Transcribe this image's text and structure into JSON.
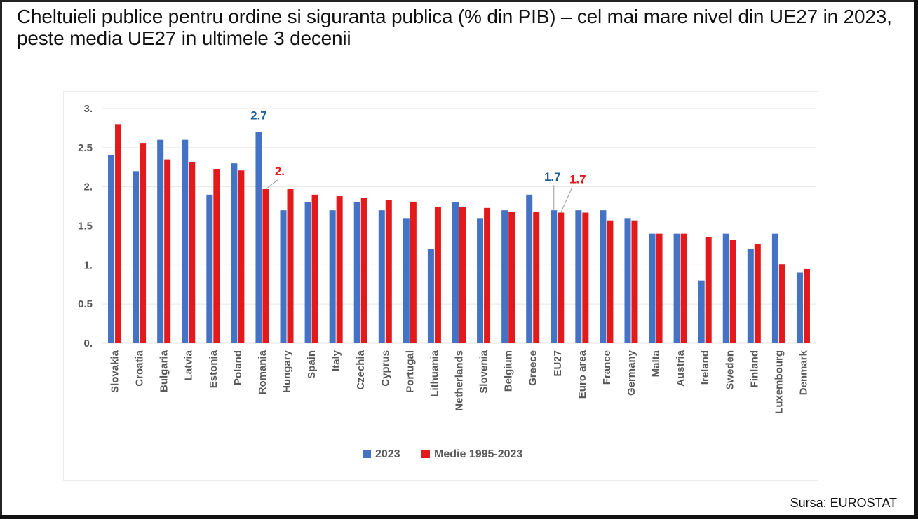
{
  "title": "Cheltuieli publice pentru ordine si siguranta publica (% din PIB) – cel mai mare nivel din UE27 in 2023, peste media UE27 in ultimele 3 decenii",
  "source": "Sursa: EUROSTAT",
  "colors": {
    "series_2023": "#4472C4",
    "series_avg": "#E31A1C",
    "label_blue": "#1F5F9E",
    "label_red": "#E31A1C",
    "grid": "#e6e6e6",
    "axis_text": "#595959"
  },
  "chart_data": {
    "type": "bar",
    "title": "",
    "xlabel": "",
    "ylabel": "",
    "ylim": [
      0,
      3
    ],
    "yticks": [
      {
        "value": 0,
        "label": "0."
      },
      {
        "value": 0.5,
        "label": "0.5"
      },
      {
        "value": 1,
        "label": "1."
      },
      {
        "value": 1.5,
        "label": "1.5"
      },
      {
        "value": 2,
        "label": "2."
      },
      {
        "value": 2.5,
        "label": "2.5"
      },
      {
        "value": 3,
        "label": "3."
      }
    ],
    "grid": true,
    "legend_position": "bottom",
    "categories": [
      "Slovakia",
      "Croatia",
      "Bulgaria",
      "Latvia",
      "Estonia",
      "Poland",
      "Romania",
      "Hungary",
      "Spain",
      "Italy",
      "Czechia",
      "Cyprus",
      "Portugal",
      "Lithuania",
      "Netherlands",
      "Slovenia",
      "Belgium",
      "Greece",
      "EU27",
      "Euro area",
      "France",
      "Germany",
      "Malta",
      "Austria",
      "Ireland",
      "Sweden",
      "Finland",
      "Luxembourg",
      "Denmark"
    ],
    "series": [
      {
        "name": "2023",
        "values": [
          2.4,
          2.2,
          2.6,
          2.6,
          1.9,
          2.3,
          2.7,
          1.7,
          1.8,
          1.7,
          1.8,
          1.7,
          1.6,
          1.2,
          1.8,
          1.6,
          1.7,
          1.9,
          1.7,
          1.7,
          1.7,
          1.6,
          1.4,
          1.4,
          0.8,
          1.4,
          1.2,
          1.4,
          0.9
        ]
      },
      {
        "name": "Medie 1995-2023",
        "values": [
          2.8,
          2.56,
          2.35,
          2.31,
          2.23,
          2.21,
          1.97,
          1.97,
          1.9,
          1.88,
          1.86,
          1.83,
          1.81,
          1.74,
          1.74,
          1.73,
          1.68,
          1.68,
          1.67,
          1.67,
          1.57,
          1.57,
          1.4,
          1.4,
          1.36,
          1.32,
          1.27,
          1.01,
          0.95
        ]
      }
    ],
    "annotations": [
      {
        "category": "Romania",
        "series": "2023",
        "text": "2.7"
      },
      {
        "category": "Romania",
        "series": "Medie 1995-2023",
        "text": "2."
      },
      {
        "category": "EU27",
        "series": "2023",
        "text": "1.7"
      },
      {
        "category": "EU27",
        "series": "Medie 1995-2023",
        "text": "1.7"
      }
    ]
  }
}
